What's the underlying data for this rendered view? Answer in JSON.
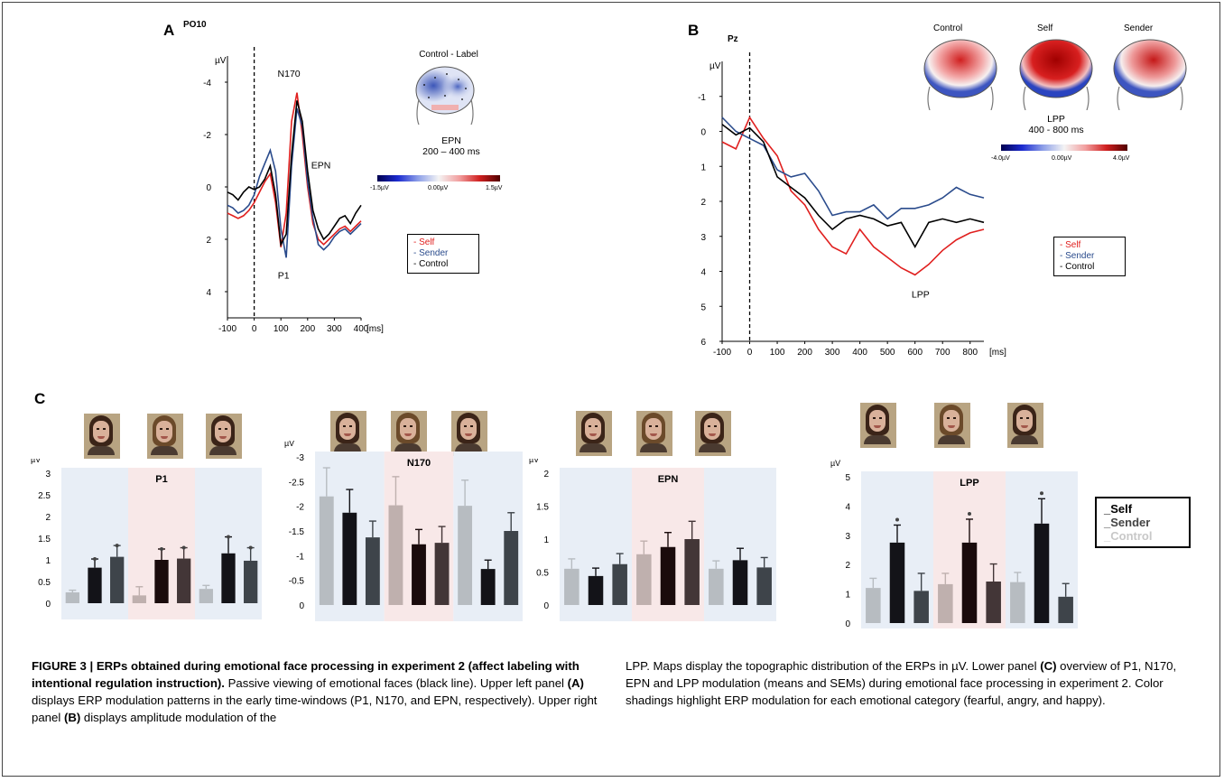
{
  "panel_a": {
    "letter": "A",
    "channel": "PO10",
    "unit": "µV",
    "yticks": [
      "-4",
      "-2",
      "0",
      "2",
      "4"
    ],
    "xticks": [
      "-100",
      "0",
      "100",
      "200",
      "300",
      "400",
      "[ms]"
    ],
    "annotations": {
      "n170": "N170",
      "epn": "EPN",
      "p1": "P1"
    },
    "map_title": "Control - Label",
    "map_component": "EPN",
    "map_window": "200 – 400 ms",
    "scale": [
      "-1.5µV",
      "0.00µV",
      "1.5µV"
    ],
    "legend": [
      "- Self",
      "- Sender",
      "- Control"
    ]
  },
  "panel_b": {
    "letter": "B",
    "channel": "Pz",
    "unit": "µV",
    "yticks": [
      "-1",
      "0",
      "1",
      "2",
      "3",
      "4",
      "5",
      "6"
    ],
    "xticks": [
      "-100",
      "0",
      "100",
      "200",
      "300",
      "400",
      "500",
      "600",
      "700",
      "800",
      "[ms]"
    ],
    "annotation": "LPP",
    "maps": [
      "Control",
      "Self",
      "Sender"
    ],
    "map_component": "LPP",
    "map_window": "400 - 800 ms",
    "scale": [
      "-4.0µV",
      "0.00µV",
      "4.0µV"
    ],
    "legend": [
      "- Self",
      "- Sender",
      "- Control"
    ]
  },
  "panel_c": {
    "letter": "C",
    "legend": [
      "Self",
      "Sender",
      "Control"
    ]
  },
  "chart_data": [
    {
      "type": "line",
      "panel": "A",
      "title": "PO10",
      "ylabel": "µV",
      "xlabel": "[ms]",
      "ylim": [
        -5,
        5
      ],
      "x": [
        -100,
        -80,
        -60,
        -40,
        -20,
        0,
        20,
        40,
        60,
        80,
        100,
        120,
        140,
        160,
        180,
        200,
        220,
        240,
        260,
        280,
        300,
        320,
        340,
        360,
        380,
        400
      ],
      "series": [
        {
          "name": "Self",
          "color": "#e0201f",
          "values": [
            1.0,
            1.1,
            1.2,
            1.1,
            0.9,
            0.6,
            0.2,
            -0.2,
            -0.5,
            0.6,
            2.3,
            1.0,
            -2.5,
            -3.6,
            -2.0,
            0.0,
            1.4,
            2.0,
            2.2,
            2.0,
            1.8,
            1.6,
            1.5,
            1.7,
            1.5,
            1.3
          ]
        },
        {
          "name": "Sender",
          "color": "#2a4b8c",
          "values": [
            0.7,
            0.8,
            1.0,
            0.9,
            0.7,
            0.3,
            -0.4,
            -0.9,
            -1.4,
            -0.6,
            1.6,
            2.7,
            -0.8,
            -3.0,
            -2.3,
            -0.2,
            1.2,
            2.2,
            2.4,
            2.2,
            1.9,
            1.7,
            1.6,
            1.8,
            1.6,
            1.4
          ]
        },
        {
          "name": "Control",
          "color": "#000000",
          "values": [
            0.2,
            0.3,
            0.5,
            0.2,
            0.0,
            0.1,
            0.0,
            -0.3,
            -0.8,
            0.3,
            2.2,
            1.8,
            -1.2,
            -3.3,
            -2.5,
            -0.6,
            0.9,
            1.6,
            2.0,
            1.8,
            1.5,
            1.2,
            1.1,
            1.4,
            1.0,
            0.7
          ]
        }
      ]
    },
    {
      "type": "line",
      "panel": "B",
      "title": "Pz",
      "ylabel": "µV",
      "xlabel": "[ms]",
      "ylim": [
        -2,
        6
      ],
      "x": [
        -100,
        -50,
        0,
        50,
        100,
        150,
        200,
        250,
        300,
        350,
        400,
        450,
        500,
        550,
        600,
        650,
        700,
        750,
        800,
        850
      ],
      "series": [
        {
          "name": "Self",
          "color": "#e0201f",
          "values": [
            0.3,
            0.5,
            -0.4,
            0.2,
            0.7,
            1.7,
            2.1,
            2.8,
            3.3,
            3.5,
            2.8,
            3.3,
            3.6,
            3.9,
            4.1,
            3.8,
            3.4,
            3.1,
            2.9,
            2.8
          ]
        },
        {
          "name": "Sender",
          "color": "#2a4b8c",
          "values": [
            -0.4,
            0.0,
            0.2,
            0.4,
            1.1,
            1.3,
            1.2,
            1.7,
            2.4,
            2.3,
            2.3,
            2.1,
            2.5,
            2.2,
            2.2,
            2.1,
            1.9,
            1.6,
            1.8,
            1.9
          ]
        },
        {
          "name": "Control",
          "color": "#000000",
          "values": [
            -0.2,
            0.1,
            -0.1,
            0.3,
            1.3,
            1.6,
            1.9,
            2.4,
            2.8,
            2.5,
            2.4,
            2.5,
            2.7,
            2.6,
            3.3,
            2.6,
            2.5,
            2.6,
            2.5,
            2.6
          ]
        }
      ]
    },
    {
      "type": "bar",
      "panel": "C",
      "title": "P1",
      "ylabel": "µV",
      "ylim": [
        0,
        3
      ],
      "yticks": [
        "0",
        "0.5",
        "1",
        "1.5",
        "2",
        "2.5",
        "3"
      ],
      "values": [
        0.25,
        0.82,
        1.07,
        0.18,
        1.0,
        1.03,
        0.33,
        1.15,
        0.98
      ],
      "errors": [
        0.05,
        0.2,
        0.26,
        0.2,
        0.25,
        0.25,
        0.08,
        0.38,
        0.3
      ],
      "significant": [
        false,
        true,
        true,
        false,
        true,
        true,
        false,
        true,
        true
      ],
      "group_shading": [
        "#e8eef6",
        "#f8e8e8",
        "#e8eef6"
      ]
    },
    {
      "type": "bar",
      "panel": "C",
      "title": "N170",
      "ylabel": "µV",
      "ylim": [
        0,
        -3
      ],
      "yticks": [
        "-3",
        "-2.5",
        "-2",
        "-1.5",
        "-1",
        "-0.5",
        "0"
      ],
      "values": [
        -2.2,
        -1.87,
        -1.37,
        -2.02,
        -1.23,
        -1.26,
        -2.01,
        -0.73,
        -1.5
      ],
      "errors": [
        0.58,
        0.47,
        0.33,
        0.58,
        0.3,
        0.33,
        0.52,
        0.18,
        0.37
      ],
      "group_shading": [
        "#e8eef6",
        "#f8e8e8",
        "#e8eef6"
      ]
    },
    {
      "type": "bar",
      "panel": "C",
      "title": "EPN",
      "ylabel": "µV",
      "ylim": [
        0,
        2
      ],
      "yticks": [
        "0",
        "0.5",
        "1",
        "1.5",
        "2"
      ],
      "values": [
        0.55,
        0.44,
        0.62,
        0.77,
        0.88,
        1.0,
        0.55,
        0.68,
        0.57
      ],
      "errors": [
        0.15,
        0.12,
        0.16,
        0.2,
        0.22,
        0.27,
        0.12,
        0.18,
        0.15
      ],
      "group_shading": [
        "#e8eef6",
        "#f8e8e8",
        "#e8eef6"
      ]
    },
    {
      "type": "bar",
      "panel": "C",
      "title": "LPP",
      "ylabel": "µV",
      "ylim": [
        0,
        5
      ],
      "yticks": [
        "0",
        "1",
        "2",
        "3",
        "4",
        "5"
      ],
      "values": [
        1.2,
        2.75,
        1.1,
        1.33,
        2.75,
        1.42,
        1.4,
        3.4,
        0.9
      ],
      "errors": [
        0.33,
        0.6,
        0.6,
        0.37,
        0.8,
        0.6,
        0.33,
        0.85,
        0.45
      ],
      "significant": [
        false,
        true,
        false,
        false,
        true,
        false,
        false,
        true,
        false
      ],
      "group_shading": [
        "#e8eef6",
        "#f8e8e8",
        "#e8eef6"
      ]
    }
  ],
  "caption": {
    "lead": "FIGURE 3 | ERPs obtained during emotional face processing in experiment 2 (affect labeling with intentional regulation instruction).",
    "col1_lines": [
      "Passive viewing of emotional faces (black line). Upper left panel ",
      "(A)",
      " displays ERP modulation patterns in the early time-windows (P1, N170, and EPN, respectively). Upper right panel ",
      "(B)",
      " displays amplitude modulation of the"
    ],
    "col2_lines": [
      "LPP. Maps display the topographic distribution of the ERPs in µV. Lower panel ",
      "(C)",
      " overview of P1, N170, EPN and LPP modulation (means and SEMs) during emotional face processing in experiment 2. Color shadings highlight ERP modulation for each emotional category (fearful, angry, and happy)."
    ]
  }
}
